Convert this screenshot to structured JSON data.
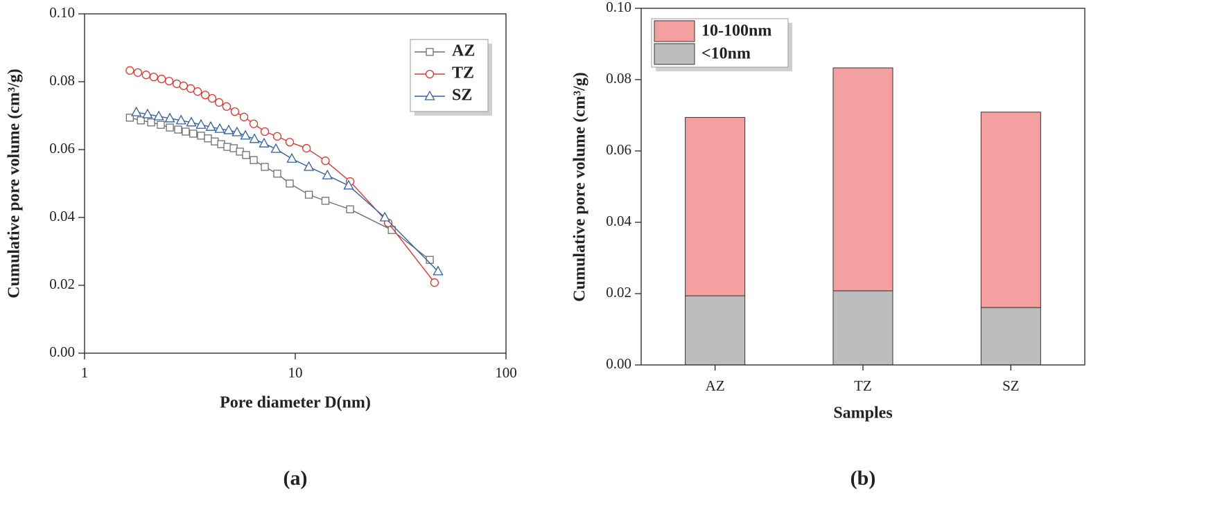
{
  "chart_data": [
    {
      "type": "line",
      "caption": "(a)",
      "xlabel": "Pore diameter D(nm)",
      "ylabel": "Cumulative pore volume (cm³/g)",
      "xlim": [
        1,
        100
      ],
      "xticks": [
        1,
        10,
        100
      ],
      "xscale": "log",
      "ylim": [
        0,
        0.1
      ],
      "yticks": [
        {
          "value": 0,
          "label": "0.00"
        },
        0.02,
        0.04,
        0.06,
        0.08,
        {
          "value": 0.1,
          "label": "0.10"
        }
      ],
      "legend": "upper right",
      "series": [
        {
          "name": "AZ",
          "color": "#6e6e6e",
          "marker": "square",
          "x": [
            1.64,
            1.85,
            2.07,
            2.3,
            2.54,
            2.78,
            3.02,
            3.28,
            3.57,
            3.85,
            4.15,
            4.45,
            4.76,
            5.1,
            5.46,
            5.84,
            6.35,
            7.17,
            8.21,
            9.41,
            11.6,
            13.9,
            18.2,
            28.7,
            43.5
          ],
          "values": [
            0.0694,
            0.0686,
            0.068,
            0.0673,
            0.0665,
            0.0659,
            0.0653,
            0.0647,
            0.0641,
            0.0633,
            0.0624,
            0.0616,
            0.0608,
            0.0604,
            0.0594,
            0.0584,
            0.0569,
            0.0549,
            0.0529,
            0.05,
            0.0467,
            0.0449,
            0.0424,
            0.0363,
            0.0275
          ]
        },
        {
          "name": "TZ",
          "color": "#e8332a",
          "marker": "circle",
          "x": [
            1.64,
            1.79,
            1.96,
            2.13,
            2.32,
            2.52,
            2.74,
            2.95,
            3.19,
            3.44,
            3.74,
            4.03,
            4.35,
            4.72,
            5.17,
            5.71,
            6.35,
            7.17,
            8.21,
            9.41,
            11.3,
            13.9,
            18.2,
            27.6,
            45.8
          ],
          "values": [
            0.0833,
            0.0827,
            0.082,
            0.0814,
            0.0808,
            0.0802,
            0.0794,
            0.0788,
            0.078,
            0.0771,
            0.0761,
            0.0751,
            0.0739,
            0.0727,
            0.0712,
            0.0696,
            0.0676,
            0.0653,
            0.0639,
            0.0622,
            0.0604,
            0.0567,
            0.0506,
            0.0384,
            0.0208
          ]
        },
        {
          "name": "SZ",
          "color": "#2f5fa8",
          "marker": "triangle",
          "x": [
            1.76,
            1.99,
            2.25,
            2.54,
            2.87,
            3.21,
            3.57,
            3.97,
            4.38,
            4.83,
            5.29,
            5.8,
            6.4,
            7.11,
            8.09,
            9.63,
            11.6,
            14.2,
            17.9,
            26.6,
            47.6
          ],
          "values": [
            0.071,
            0.0704,
            0.0698,
            0.0692,
            0.0686,
            0.068,
            0.0673,
            0.0667,
            0.0661,
            0.0657,
            0.0651,
            0.0641,
            0.0631,
            0.0618,
            0.0602,
            0.0573,
            0.0549,
            0.0524,
            0.0494,
            0.04,
            0.0241
          ]
        }
      ]
    },
    {
      "type": "stacked_bar",
      "caption": "(b)",
      "xlabel": "Samples",
      "ylabel": "Cumulative pore volume (cm³/g)",
      "categories": [
        "AZ",
        "TZ",
        "SZ"
      ],
      "ylim": [
        0,
        0.1
      ],
      "yticks": [
        {
          "value": 0,
          "label": "0.00"
        },
        0.02,
        0.04,
        0.06,
        0.08,
        {
          "value": 0.1,
          "label": "0.10"
        }
      ],
      "legend": "upper left",
      "series": [
        {
          "name": "<10nm",
          "color": "#bdbdbd",
          "values": [
            0.0194,
            0.0208,
            0.0161
          ]
        },
        {
          "name": "10-100nm",
          "color": "#f4a0a0",
          "values": [
            0.05,
            0.0625,
            0.0548
          ]
        }
      ]
    }
  ]
}
